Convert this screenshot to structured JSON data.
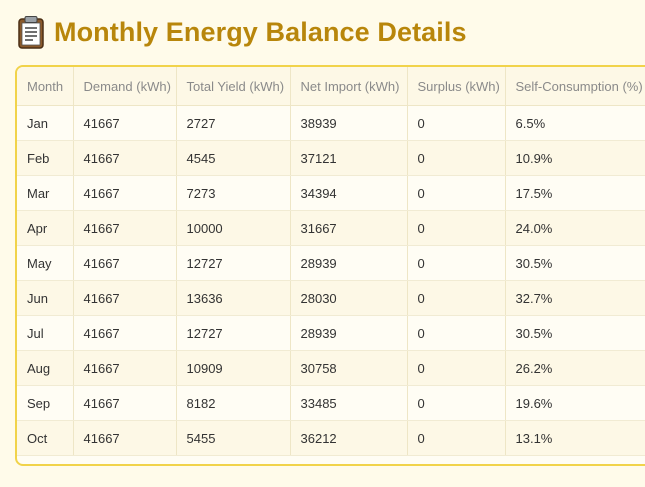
{
  "header": {
    "icon": "clipboard-icon",
    "title": "Monthly Energy Balance Details"
  },
  "colors": {
    "title": "#b8860b",
    "card_border": "#f1d34a",
    "background": "#fffbea"
  },
  "table": {
    "columns": [
      "Month",
      "Demand (kWh)",
      "Total Yield (kWh)",
      "Net Import (kWh)",
      "Surplus (kWh)",
      "Self-Consumption (%)"
    ],
    "rows": [
      [
        "Jan",
        "41667",
        "2727",
        "38939",
        "0",
        "6.5%"
      ],
      [
        "Feb",
        "41667",
        "4545",
        "37121",
        "0",
        "10.9%"
      ],
      [
        "Mar",
        "41667",
        "7273",
        "34394",
        "0",
        "17.5%"
      ],
      [
        "Apr",
        "41667",
        "10000",
        "31667",
        "0",
        "24.0%"
      ],
      [
        "May",
        "41667",
        "12727",
        "28939",
        "0",
        "30.5%"
      ],
      [
        "Jun",
        "41667",
        "13636",
        "28030",
        "0",
        "32.7%"
      ],
      [
        "Jul",
        "41667",
        "12727",
        "28939",
        "0",
        "30.5%"
      ],
      [
        "Aug",
        "41667",
        "10909",
        "30758",
        "0",
        "26.2%"
      ],
      [
        "Sep",
        "41667",
        "8182",
        "33485",
        "0",
        "19.6%"
      ],
      [
        "Oct",
        "41667",
        "5455",
        "36212",
        "0",
        "13.1%"
      ]
    ]
  }
}
